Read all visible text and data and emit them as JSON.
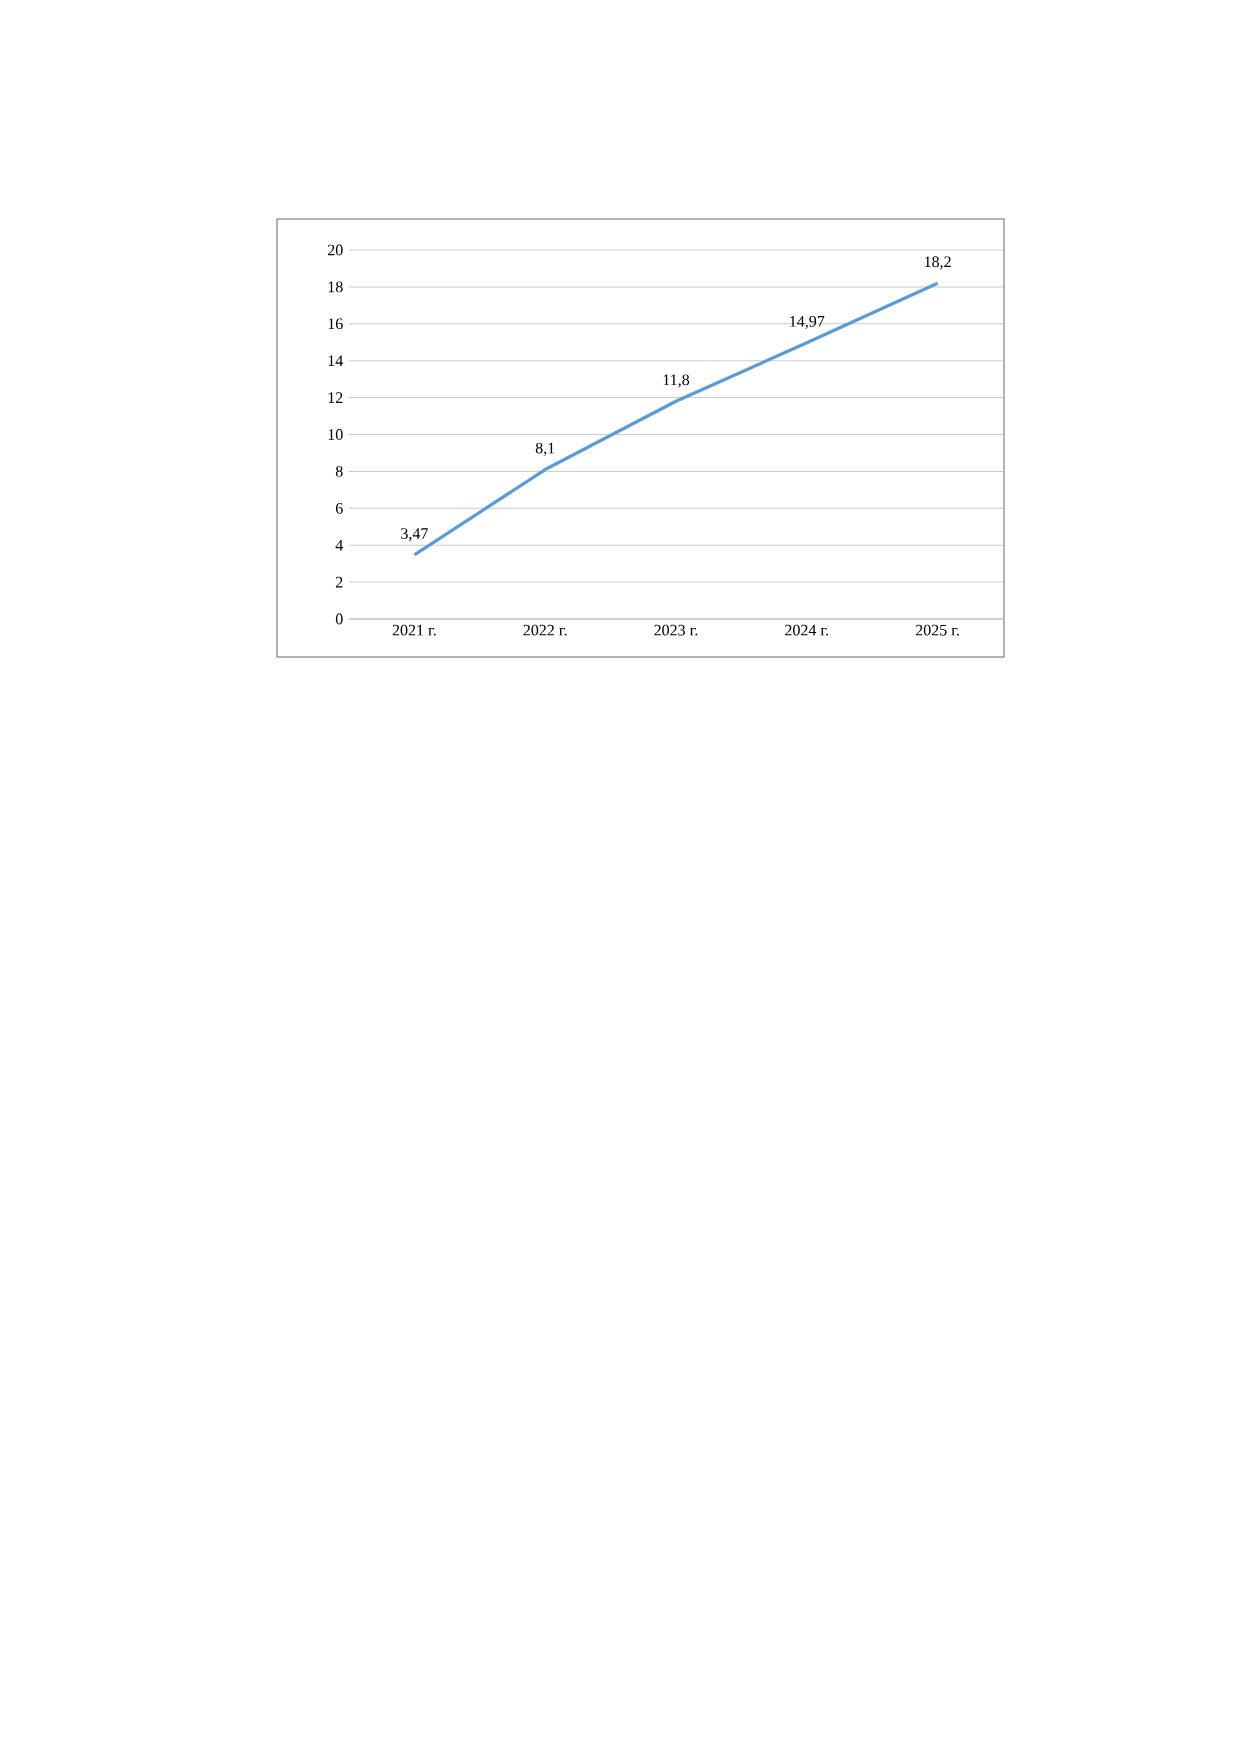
{
  "chart_data": {
    "type": "line",
    "categories": [
      "2021 г.",
      "2022 г.",
      "2023 г.",
      "2024 г.",
      "2025 г."
    ],
    "series": [
      {
        "color": "#5b9bd5",
        "values": [
          3.47,
          8.1,
          11.8,
          14.97,
          18.2
        ],
        "value_labels": [
          "3,47",
          "8,1",
          "11,8",
          "14,97",
          "18,2"
        ]
      }
    ],
    "ylim": [
      0,
      20
    ],
    "yticks": [
      0,
      2,
      4,
      6,
      8,
      10,
      12,
      14,
      16,
      18,
      20
    ],
    "grid": "y",
    "marker": "none",
    "line_style": "solid"
  }
}
